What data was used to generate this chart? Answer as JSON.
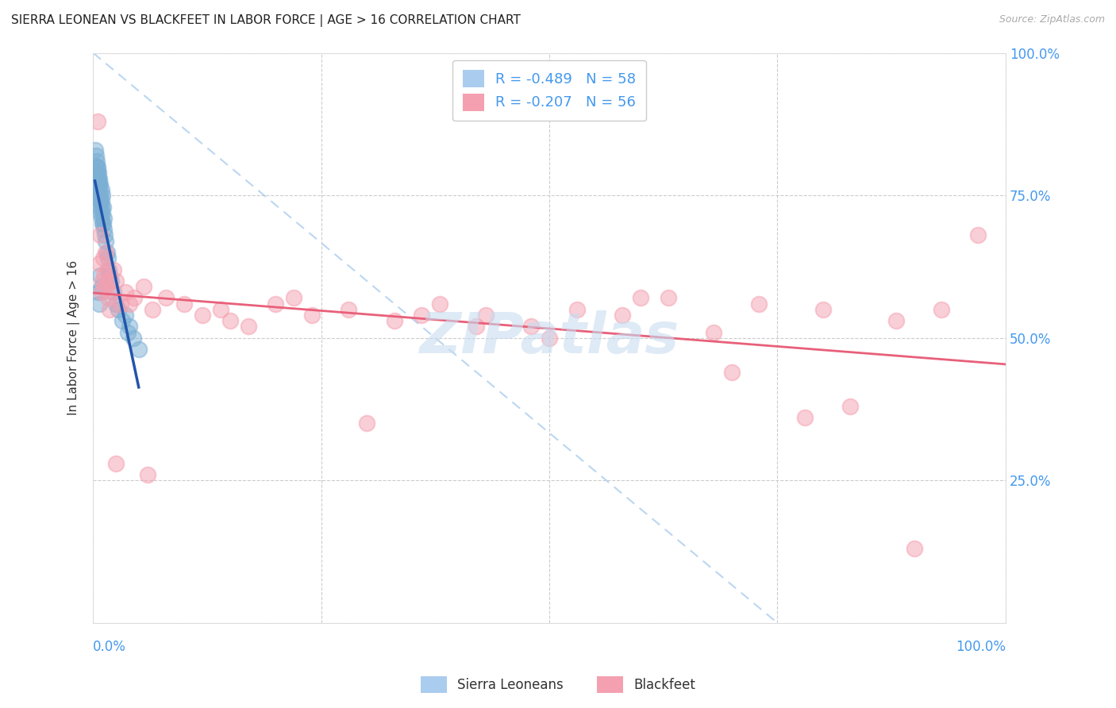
{
  "title": "SIERRA LEONEAN VS BLACKFEET IN LABOR FORCE | AGE > 16 CORRELATION CHART",
  "source": "Source: ZipAtlas.com",
  "ylabel": "In Labor Force | Age > 16",
  "blue_label": "Sierra Leoneans",
  "pink_label": "Blackfeet",
  "blue_R": -0.489,
  "blue_N": 58,
  "pink_R": -0.207,
  "pink_N": 56,
  "background_color": "#FFFFFF",
  "grid_color": "#CCCCCC",
  "blue_dot_color": "#7BAFD4",
  "pink_dot_color": "#F4A0B0",
  "blue_line_color": "#2255AA",
  "pink_line_color": "#E8607A",
  "diag_color": "#AACCEE",
  "tick_color": "#4499EE",
  "legend_text_color": "#4499EE",
  "watermark_color": "#C8DCEF",
  "title_fontsize": 11,
  "source_fontsize": 9,
  "tick_fontsize": 12,
  "legend_fontsize": 13,
  "ylabel_fontsize": 11,
  "blue_scatter_x": [
    0.002,
    0.003,
    0.003,
    0.003,
    0.004,
    0.004,
    0.004,
    0.004,
    0.005,
    0.005,
    0.005,
    0.005,
    0.005,
    0.006,
    0.006,
    0.006,
    0.006,
    0.006,
    0.007,
    0.007,
    0.007,
    0.007,
    0.007,
    0.008,
    0.008,
    0.008,
    0.008,
    0.009,
    0.009,
    0.009,
    0.009,
    0.01,
    0.01,
    0.01,
    0.011,
    0.011,
    0.012,
    0.012,
    0.013,
    0.014,
    0.015,
    0.016,
    0.017,
    0.018,
    0.02,
    0.022,
    0.025,
    0.028,
    0.032,
    0.038,
    0.044,
    0.05,
    0.006,
    0.007,
    0.008,
    0.009,
    0.035,
    0.04
  ],
  "blue_scatter_y": [
    0.83,
    0.8,
    0.78,
    0.82,
    0.79,
    0.81,
    0.77,
    0.8,
    0.79,
    0.77,
    0.8,
    0.76,
    0.78,
    0.78,
    0.77,
    0.75,
    0.79,
    0.76,
    0.78,
    0.76,
    0.74,
    0.77,
    0.73,
    0.75,
    0.77,
    0.74,
    0.72,
    0.74,
    0.76,
    0.73,
    0.71,
    0.75,
    0.72,
    0.7,
    0.73,
    0.7,
    0.71,
    0.69,
    0.68,
    0.67,
    0.65,
    0.64,
    0.62,
    0.61,
    0.6,
    0.58,
    0.56,
    0.55,
    0.53,
    0.51,
    0.5,
    0.48,
    0.58,
    0.56,
    0.61,
    0.59,
    0.54,
    0.52
  ],
  "pink_scatter_x": [
    0.005,
    0.007,
    0.008,
    0.009,
    0.01,
    0.011,
    0.012,
    0.013,
    0.014,
    0.015,
    0.016,
    0.017,
    0.018,
    0.02,
    0.022,
    0.025,
    0.03,
    0.035,
    0.04,
    0.045,
    0.055,
    0.065,
    0.08,
    0.1,
    0.12,
    0.14,
    0.17,
    0.2,
    0.24,
    0.28,
    0.33,
    0.38,
    0.43,
    0.48,
    0.53,
    0.58,
    0.63,
    0.68,
    0.73,
    0.78,
    0.83,
    0.88,
    0.93,
    0.97,
    0.15,
    0.22,
    0.3,
    0.36,
    0.42,
    0.5,
    0.6,
    0.7,
    0.8,
    0.9,
    0.025,
    0.06
  ],
  "pink_scatter_y": [
    0.88,
    0.63,
    0.68,
    0.58,
    0.6,
    0.64,
    0.61,
    0.59,
    0.65,
    0.62,
    0.57,
    0.6,
    0.55,
    0.58,
    0.62,
    0.6,
    0.56,
    0.58,
    0.56,
    0.57,
    0.59,
    0.55,
    0.57,
    0.56,
    0.54,
    0.55,
    0.52,
    0.56,
    0.54,
    0.55,
    0.53,
    0.56,
    0.54,
    0.52,
    0.55,
    0.54,
    0.57,
    0.51,
    0.56,
    0.36,
    0.38,
    0.53,
    0.55,
    0.68,
    0.53,
    0.57,
    0.35,
    0.54,
    0.52,
    0.5,
    0.57,
    0.44,
    0.55,
    0.13,
    0.28,
    0.26
  ],
  "xlim": [
    0.0,
    1.0
  ],
  "ylim": [
    0.0,
    1.0
  ],
  "yticks": [
    0.0,
    0.25,
    0.5,
    0.75,
    1.0
  ],
  "xticks": [
    0.0,
    0.25,
    0.5,
    0.75,
    1.0
  ]
}
